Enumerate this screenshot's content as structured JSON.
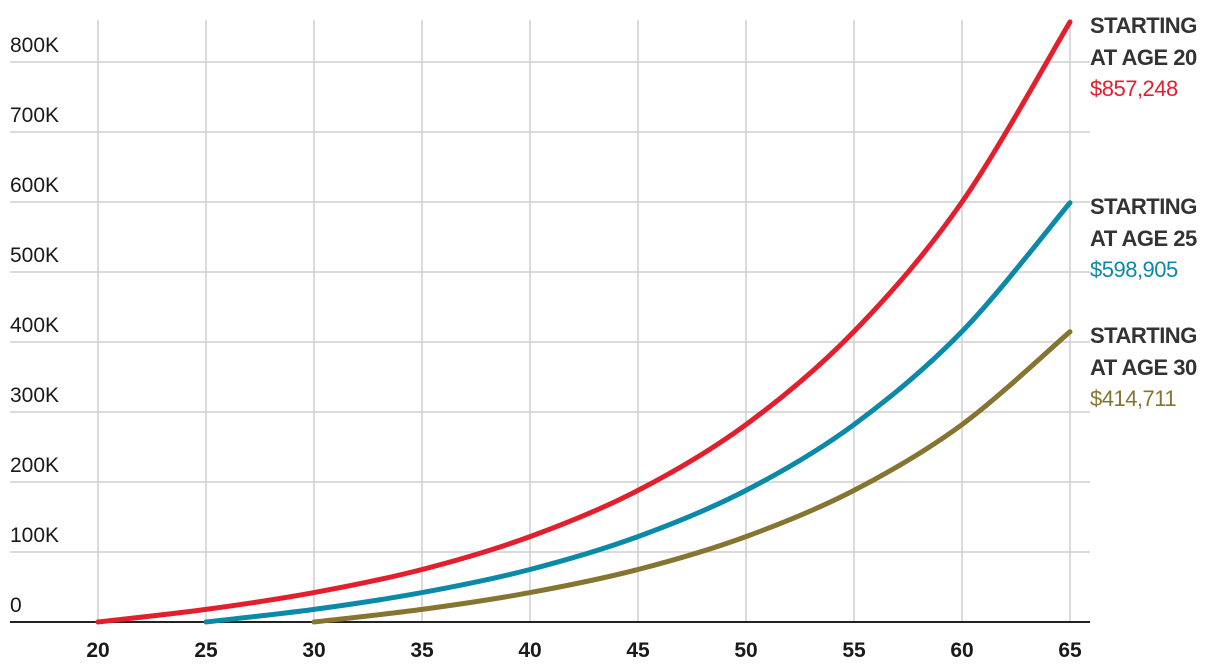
{
  "chart_data": {
    "type": "line",
    "x": [
      20,
      25,
      30,
      35,
      40,
      45,
      50,
      55,
      60,
      65
    ],
    "xlim": [
      20,
      65
    ],
    "xticks": [
      20,
      25,
      30,
      35,
      40,
      45,
      50,
      55,
      60,
      65
    ],
    "ylim": [
      0,
      860000
    ],
    "yticks": [
      0,
      {
        "value": 100000,
        "label": "100K"
      },
      {
        "value": 200000,
        "label": "200K"
      },
      {
        "value": 300000,
        "label": "300K"
      },
      {
        "value": 400000,
        "label": "400K"
      },
      {
        "value": 500000,
        "label": "500K"
      },
      {
        "value": 600000,
        "label": "600K"
      },
      {
        "value": 700000,
        "label": "700K"
      },
      {
        "value": 800000,
        "label": "800K"
      }
    ],
    "grid": true,
    "series": [
      {
        "name": "STARTING AT AGE 20",
        "color": "#e31e2d",
        "values": [
          0,
          18000,
          42000,
          75000,
          122000,
          188000,
          282000,
          415000,
          600000,
          857248
        ],
        "value_labels": [
          null,
          null,
          null,
          null,
          null,
          null,
          null,
          null,
          null,
          "$857,248"
        ]
      },
      {
        "name": "STARTING AT AGE 25",
        "color": "#0a8aa8",
        "values": [
          null,
          0,
          18000,
          42000,
          75000,
          122000,
          188000,
          282000,
          415000,
          598905
        ],
        "value_labels": [
          null,
          null,
          null,
          null,
          null,
          null,
          null,
          null,
          null,
          "$598,905"
        ]
      },
      {
        "name": "STARTING AT AGE 30",
        "color": "#857530",
        "values": [
          null,
          null,
          0,
          18000,
          42000,
          75000,
          122000,
          188000,
          282000,
          414711
        ],
        "value_labels": [
          null,
          null,
          null,
          null,
          null,
          null,
          null,
          null,
          null,
          "$414,711"
        ]
      }
    ]
  }
}
